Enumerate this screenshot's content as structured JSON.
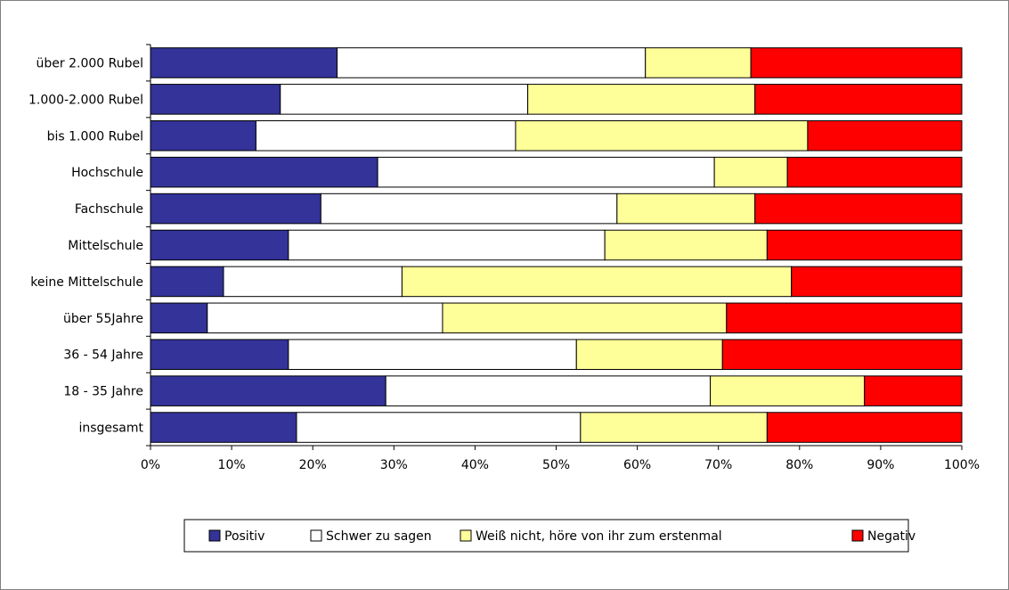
{
  "chart_data": {
    "type": "bar",
    "orientation": "horizontal",
    "stacked": "percent",
    "categories": [
      "über 2.000 Rubel",
      "1.000-2.000 Rubel",
      "bis 1.000 Rubel",
      "Hochschule",
      "Fachschule",
      "Mittelschule",
      "keine Mittelschule",
      "über 55Jahre",
      "36 - 54 Jahre",
      "18 - 35 Jahre",
      "insgesamt"
    ],
    "series": [
      {
        "name": "Positiv",
        "color": "#333399",
        "values": [
          23,
          16,
          13,
          28,
          21,
          17,
          9,
          7,
          17,
          29,
          18
        ]
      },
      {
        "name": "Schwer zu sagen",
        "color": "#ffffff",
        "values": [
          38,
          30.5,
          32,
          41.5,
          36.5,
          39,
          22,
          29,
          35.5,
          40,
          35
        ]
      },
      {
        "name": "Weiß nicht, höre von ihr zum erstenmal",
        "color": "#ffff99",
        "values": [
          13,
          28,
          36,
          9,
          17,
          20,
          48,
          35,
          18,
          19,
          23
        ]
      },
      {
        "name": "Negativ",
        "color": "#ff0000",
        "values": [
          26,
          25.5,
          19,
          21.5,
          25.5,
          24,
          21,
          29,
          29.5,
          12,
          24
        ]
      }
    ],
    "xlim": [
      0,
      100
    ],
    "x_ticks": [
      "0%",
      "10%",
      "20%",
      "30%",
      "40%",
      "50%",
      "60%",
      "70%",
      "80%",
      "90%",
      "100%"
    ],
    "grid": false,
    "legend_position": "bottom"
  }
}
